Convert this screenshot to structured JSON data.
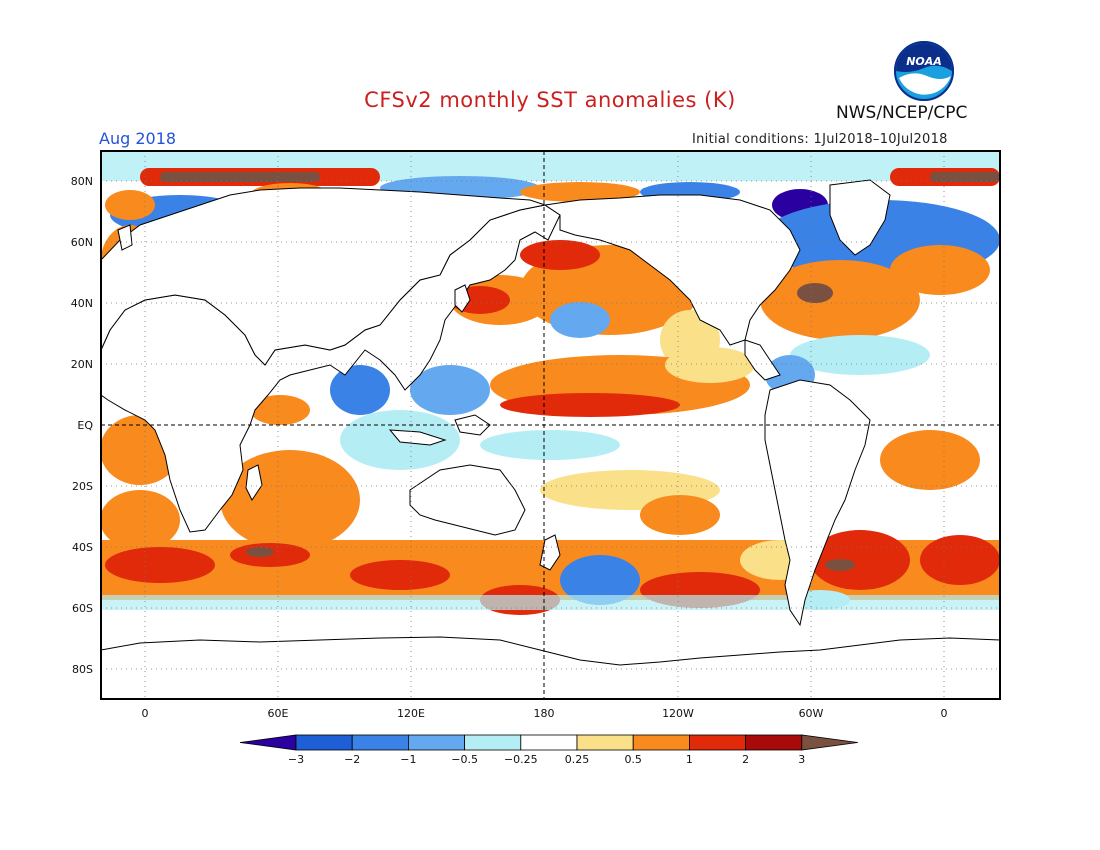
{
  "header": {
    "title": "CFSv2 monthly SST anomalies (K)",
    "agency": "NWS/NCEP/CPC",
    "month": "Aug 2018",
    "initial_conditions": "Initial conditions: 1Jul2018–10Jul2018",
    "logo_text": "NOAA"
  },
  "map": {
    "lat_labels": [
      "80N",
      "60N",
      "40N",
      "20N",
      "EQ",
      "20S",
      "40S",
      "60S",
      "80S"
    ],
    "lon_labels": [
      "0",
      "60E",
      "120E",
      "180",
      "120W",
      "60W",
      "0"
    ]
  },
  "colorbar": {
    "labels": [
      "−3",
      "−2",
      "−1",
      "−0.5",
      "−0.25",
      "0.25",
      "0.5",
      "1",
      "2",
      "3"
    ],
    "colors": [
      "#2a00a0",
      "#1e5ed6",
      "#3a82e6",
      "#64a8f0",
      "#b4eef4",
      "#ffffff",
      "#fbe08a",
      "#f98a1e",
      "#e02a0a",
      "#a80a0a",
      "#7a5040"
    ]
  }
}
